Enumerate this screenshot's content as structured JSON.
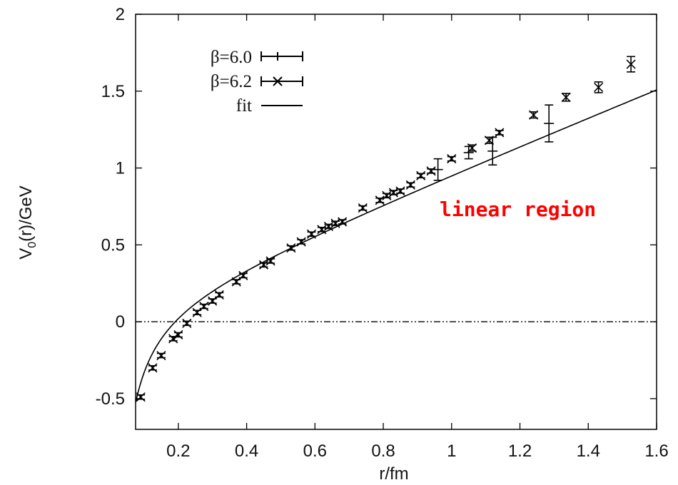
{
  "chart_data": {
    "type": "scatter",
    "xlabel": "r/fm",
    "ylabel": "V",
    "ylabel_sub": "0",
    "ylabel_rest": "(r)/GeV",
    "xlim": [
      0.075,
      1.6
    ],
    "ylim": [
      -0.7,
      2.0
    ],
    "xticks": [
      0.2,
      0.4,
      0.6,
      0.8,
      1,
      1.2,
      1.4,
      1.6
    ],
    "xtick_labels": [
      "0.2",
      "0.4",
      "0.6",
      "0.8",
      "1",
      "1.2",
      "1.4",
      "1.6"
    ],
    "yticks": [
      -0.5,
      0,
      0.5,
      1,
      1.5,
      2
    ],
    "ytick_labels": [
      "-0.5",
      "0",
      "0.5",
      "1",
      "1.5",
      "2"
    ],
    "grid": false,
    "legend_position": "top-left",
    "zero_line": true,
    "annotation": {
      "text": "linear region",
      "color": "#ff0000",
      "x": 1.2,
      "y": 0.72
    },
    "fit": {
      "name": "fit",
      "form": "a + sigma*r - e/r",
      "params": {
        "a": 0.1,
        "sigma": 0.9,
        "e": 0.052
      }
    },
    "series": [
      {
        "name": "β=6.0",
        "marker": "plus",
        "points": [
          {
            "x": 0.96,
            "y": 0.99,
            "err": 0.07
          },
          {
            "x": 1.05,
            "y": 1.1,
            "err": 0.04
          },
          {
            "x": 1.12,
            "y": 1.11,
            "err": 0.09
          },
          {
            "x": 1.285,
            "y": 1.29,
            "err": 0.12
          }
        ]
      },
      {
        "name": "β=6.2",
        "marker": "cross",
        "points": [
          {
            "x": 0.09,
            "y": -0.49,
            "err": 0.01
          },
          {
            "x": 0.125,
            "y": -0.3,
            "err": 0.01
          },
          {
            "x": 0.15,
            "y": -0.22,
            "err": 0.01
          },
          {
            "x": 0.185,
            "y": -0.11,
            "err": 0.01
          },
          {
            "x": 0.2,
            "y": -0.085,
            "err": 0.01
          },
          {
            "x": 0.225,
            "y": -0.01,
            "err": 0.01
          },
          {
            "x": 0.255,
            "y": 0.06,
            "err": 0.01
          },
          {
            "x": 0.275,
            "y": 0.1,
            "err": 0.01
          },
          {
            "x": 0.3,
            "y": 0.135,
            "err": 0.01
          },
          {
            "x": 0.32,
            "y": 0.175,
            "err": 0.01
          },
          {
            "x": 0.37,
            "y": 0.26,
            "err": 0.01
          },
          {
            "x": 0.39,
            "y": 0.3,
            "err": 0.01
          },
          {
            "x": 0.45,
            "y": 0.37,
            "err": 0.01
          },
          {
            "x": 0.47,
            "y": 0.395,
            "err": 0.01
          },
          {
            "x": 0.53,
            "y": 0.48,
            "err": 0.01
          },
          {
            "x": 0.56,
            "y": 0.52,
            "err": 0.01
          },
          {
            "x": 0.59,
            "y": 0.57,
            "err": 0.01
          },
          {
            "x": 0.62,
            "y": 0.6,
            "err": 0.01
          },
          {
            "x": 0.64,
            "y": 0.62,
            "err": 0.01
          },
          {
            "x": 0.66,
            "y": 0.64,
            "err": 0.01
          },
          {
            "x": 0.68,
            "y": 0.65,
            "err": 0.01
          },
          {
            "x": 0.74,
            "y": 0.74,
            "err": 0.01
          },
          {
            "x": 0.79,
            "y": 0.79,
            "err": 0.01
          },
          {
            "x": 0.81,
            "y": 0.82,
            "err": 0.01
          },
          {
            "x": 0.83,
            "y": 0.84,
            "err": 0.01
          },
          {
            "x": 0.85,
            "y": 0.85,
            "err": 0.01
          },
          {
            "x": 0.88,
            "y": 0.89,
            "err": 0.01
          },
          {
            "x": 0.91,
            "y": 0.95,
            "err": 0.01
          },
          {
            "x": 0.94,
            "y": 0.98,
            "err": 0.01
          },
          {
            "x": 1.0,
            "y": 1.06,
            "err": 0.01
          },
          {
            "x": 1.06,
            "y": 1.13,
            "err": 0.02
          },
          {
            "x": 1.11,
            "y": 1.18,
            "err": 0.02
          },
          {
            "x": 1.14,
            "y": 1.23,
            "err": 0.01
          },
          {
            "x": 1.24,
            "y": 1.345,
            "err": 0.02
          },
          {
            "x": 1.335,
            "y": 1.46,
            "err": 0.025
          },
          {
            "x": 1.43,
            "y": 1.525,
            "err": 0.035
          },
          {
            "x": 1.525,
            "y": 1.675,
            "err": 0.05
          }
        ]
      }
    ]
  }
}
